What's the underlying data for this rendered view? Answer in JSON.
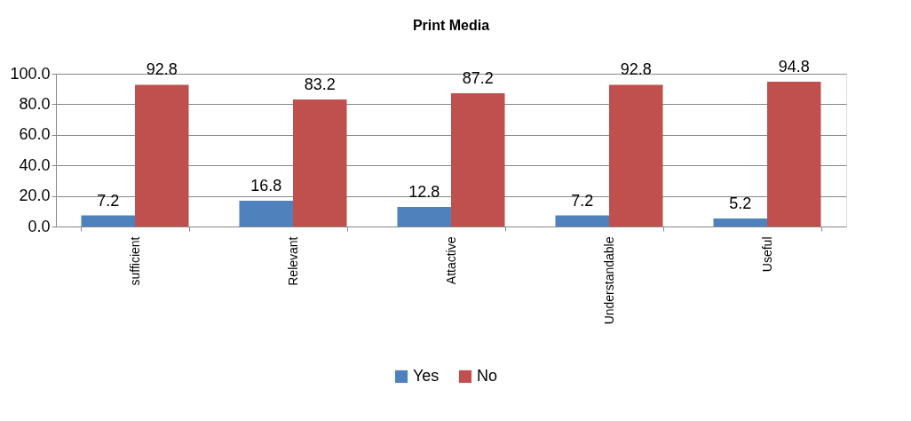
{
  "chart_data": {
    "type": "bar",
    "title": "Print Media",
    "categories": [
      "sufficient",
      "Relevant",
      "Attactive",
      "Understandable",
      "Useful"
    ],
    "series": [
      {
        "name": "Yes",
        "color": "#4f81bd",
        "values": [
          7.2,
          16.8,
          12.8,
          7.2,
          5.2
        ]
      },
      {
        "name": "No",
        "color": "#c0504d",
        "values": [
          92.8,
          83.2,
          87.2,
          92.8,
          94.8
        ]
      }
    ],
    "ylim": [
      0,
      100
    ],
    "yticks": [
      {
        "value": 0,
        "label": "0.0"
      },
      {
        "value": 20,
        "label": "20.0"
      },
      {
        "value": 40,
        "label": "40.0"
      },
      {
        "value": 60,
        "label": "60.0"
      },
      {
        "value": 80,
        "label": "80.0"
      },
      {
        "value": 100,
        "label": "100.0"
      }
    ],
    "grid": "y",
    "legend": "bottom",
    "data_labels": true
  }
}
